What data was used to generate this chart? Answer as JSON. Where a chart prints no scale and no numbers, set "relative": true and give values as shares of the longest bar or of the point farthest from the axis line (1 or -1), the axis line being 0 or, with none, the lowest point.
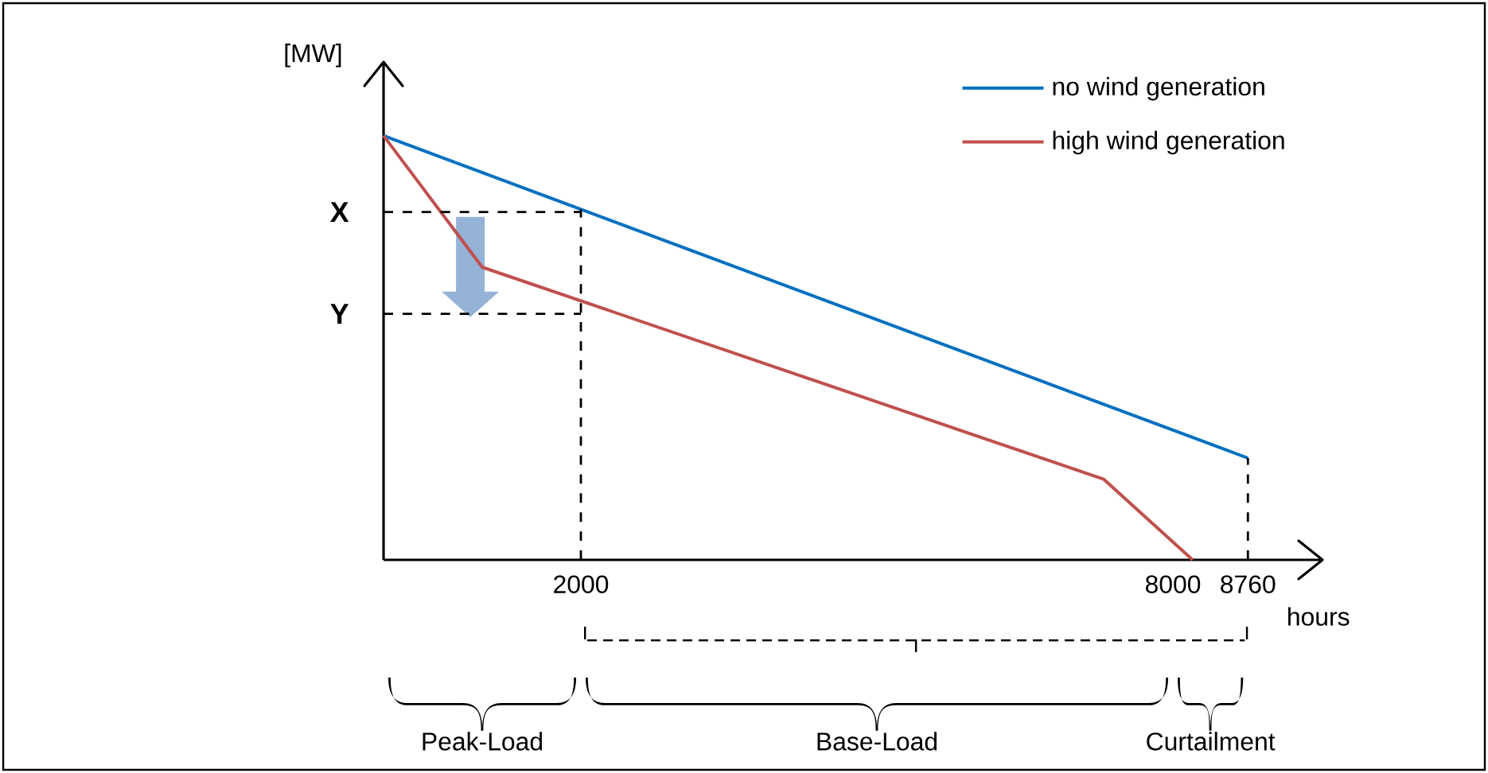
{
  "chart_data": {
    "type": "line",
    "relative": true,
    "ylabel": "[MW]",
    "xlabel": "hours",
    "xlim": [
      0,
      9500
    ],
    "xticks": [
      2000,
      8000,
      8760
    ],
    "series": [
      {
        "name": "no wind generation",
        "color": "#0070c0",
        "x": [
          0,
          8760
        ],
        "values": [
          1,
          0.24
        ]
      },
      {
        "name": "high wind generation",
        "color": "#c0504d",
        "x": [
          0,
          1000,
          7300,
          8200
        ],
        "values": [
          1,
          0.69,
          0.19,
          0
        ]
      }
    ],
    "ref_lines": [
      {
        "axis": "x",
        "value": 2000,
        "line_style": "dashed"
      },
      {
        "axis": "x",
        "value": 8760,
        "line_style": "dashed"
      },
      {
        "axis": "y",
        "value": 0.82,
        "label": "X",
        "line_style": "dashed"
      },
      {
        "axis": "y",
        "value": 0.58,
        "label": "Y",
        "line_style": "dashed"
      }
    ],
    "annotations": [
      "Peak-Load",
      "Base-Load",
      "Curtailment"
    ],
    "legend": "top right"
  }
}
